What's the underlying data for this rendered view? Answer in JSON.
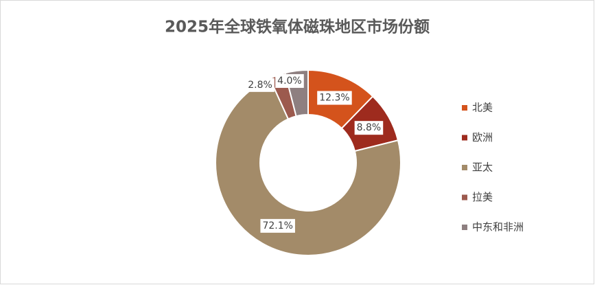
{
  "chart_data": {
    "type": "donut",
    "title": "2025年全球铁氧体磁珠地区市场份额",
    "categories": [
      "北美",
      "欧洲",
      "亚太",
      "拉美",
      "中东和非洲"
    ],
    "values": [
      12.3,
      8.8,
      72.1,
      2.8,
      4.0
    ],
    "value_labels": [
      "12.3%",
      "8.8%",
      "72.1%",
      "2.8%",
      "4.0%"
    ],
    "colors": [
      "#D4531C",
      "#9E2B1E",
      "#A38B69",
      "#9C5A4E",
      "#8E7F80"
    ],
    "legend": "right"
  }
}
